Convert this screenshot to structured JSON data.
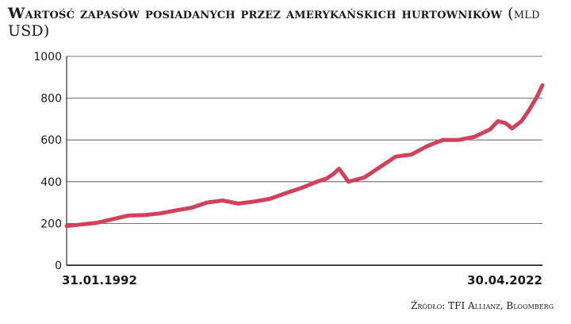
{
  "title": {
    "main": "Wartość zapasów posiadanych przez amerykańskich hurtowników",
    "unit": "(mld USD)"
  },
  "source": "Źródło: TFI Allianz, Bloomberg",
  "colors": {
    "line": "#d2405a",
    "grid": "#444444",
    "axis": "#000000"
  },
  "chart_data": {
    "type": "line",
    "title": "Wartość zapasów posiadanych przez amerykańskich hurtowników (mld USD)",
    "xlabel": "",
    "ylabel": "",
    "ylim": [
      0,
      1000
    ],
    "yticks": [
      0,
      200,
      400,
      600,
      800,
      1000
    ],
    "ytick_labels": [
      "0",
      "200",
      "400",
      "600",
      "800",
      "1000"
    ],
    "xlim": [
      1992.083,
      2022.33
    ],
    "xtick_labels": [
      {
        "x": 1992.083,
        "label": "31.01.1992"
      },
      {
        "x": 2022.33,
        "label": "30.04.2022"
      }
    ],
    "grid": true,
    "series": [
      {
        "x": [
          1992.083,
          1993,
          1994,
          1995,
          1996,
          1997,
          1998,
          1999,
          2000,
          2001,
          2002,
          2003,
          2004,
          2005,
          2006,
          2007,
          2008,
          2008.6,
          2009,
          2009.4,
          2010,
          2011,
          2012,
          2013,
          2014,
          2015,
          2016,
          2017,
          2018,
          2019,
          2019.5,
          2020,
          2020.4,
          2021,
          2021.5,
          2022,
          2022.33
        ],
        "y": [
          188,
          195,
          203,
          220,
          238,
          240,
          248,
          262,
          275,
          300,
          310,
          295,
          305,
          318,
          345,
          370,
          400,
          415,
          435,
          462,
          400,
          420,
          470,
          520,
          530,
          570,
          600,
          600,
          615,
          650,
          690,
          680,
          655,
          690,
          745,
          810,
          862
        ]
      }
    ]
  }
}
